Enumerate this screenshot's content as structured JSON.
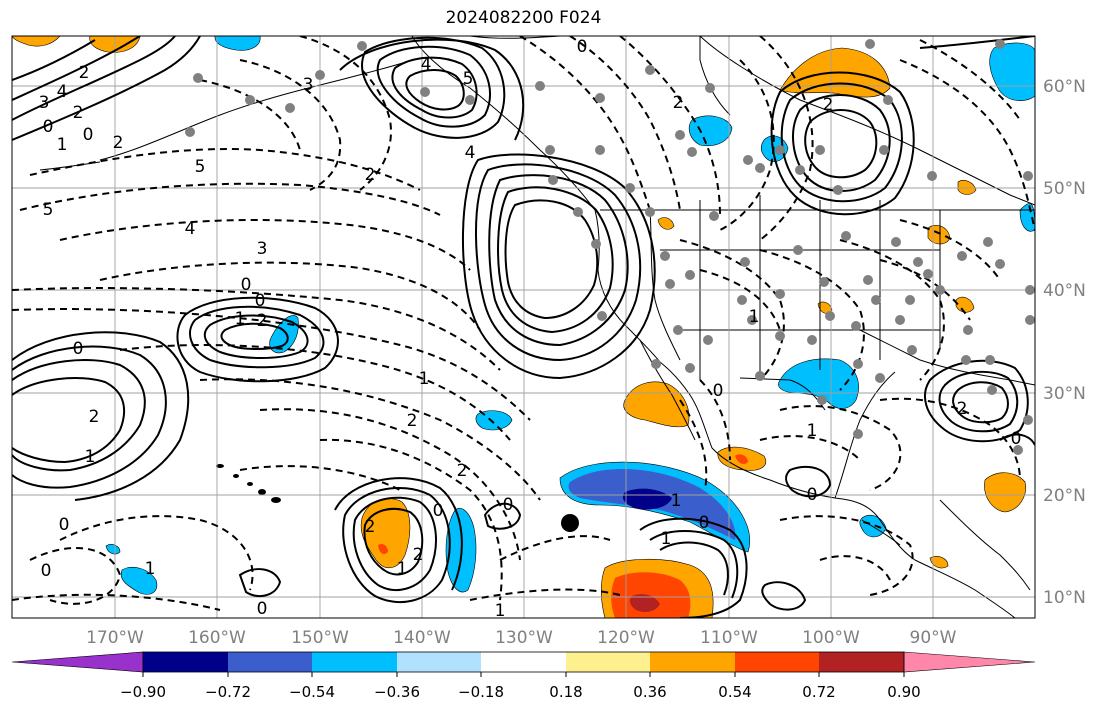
{
  "title": "2024082200 F024",
  "lon_labels": [
    "170°W",
    "160°W",
    "150°W",
    "140°W",
    "130°W",
    "120°W",
    "110°W",
    "100°W",
    "90°W"
  ],
  "lat_labels": [
    "60°N",
    "50°N",
    "40°N",
    "30°N",
    "20°N",
    "10°N"
  ],
  "colorbar": {
    "colors": [
      "#9932cc",
      "#00008b",
      "#3a5fcd",
      "#00bfff",
      "#b0e2ff",
      "#ffffff",
      "#fff08f",
      "#ffa500",
      "#ff4500",
      "#b22222",
      "#ff88aa"
    ],
    "tick_labels": [
      "−0.90",
      "−0.72",
      "−0.54",
      "−0.36",
      "−0.18",
      "0.18",
      "0.36",
      "0.54",
      "0.72",
      "0.90"
    ]
  },
  "contour_labels": [
    "2",
    "4",
    "3",
    "2",
    "0",
    "0",
    "1",
    "2",
    "0",
    "5",
    "4",
    "5",
    "4",
    "3",
    "2",
    "0",
    "1",
    "2",
    "0",
    "5",
    "4",
    "3",
    "0",
    "1",
    "2",
    "0",
    "2",
    "1",
    "2",
    "2",
    "0",
    "1",
    "2",
    "0",
    "1",
    "0",
    "0",
    "2",
    "1",
    "1",
    "0",
    "1",
    "0",
    "1",
    "0",
    "2",
    "0",
    "2",
    "1"
  ]
}
